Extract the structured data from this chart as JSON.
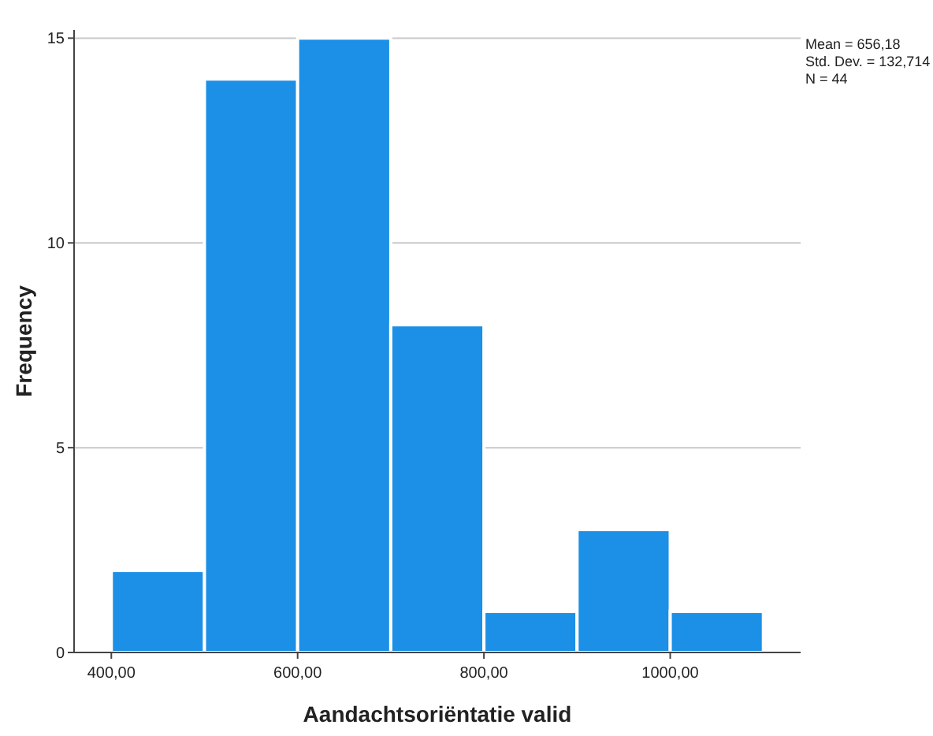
{
  "chart_data": {
    "type": "histogram",
    "xlabel": "Aandachtsoriëntatie valid",
    "ylabel": "Frequency",
    "bins": [
      400,
      500,
      600,
      700,
      800,
      900,
      1000,
      1100
    ],
    "values": [
      2,
      14,
      15,
      8,
      1,
      3,
      1
    ],
    "color": "#1c8fe6",
    "xlim": [
      360,
      1140
    ],
    "ylim": [
      0,
      15.2
    ],
    "xticks": [
      {
        "value": 400,
        "label": "400,00"
      },
      {
        "value": 600,
        "label": "600,00"
      },
      {
        "value": 800,
        "label": "800,00"
      },
      {
        "value": 1000,
        "label": "1000,00"
      }
    ],
    "yticks": [
      0,
      5,
      10,
      15
    ],
    "grid": "y",
    "annotations": [
      "Mean = 656,18",
      "Std. Dev. = 132,714",
      "N = 44"
    ]
  }
}
